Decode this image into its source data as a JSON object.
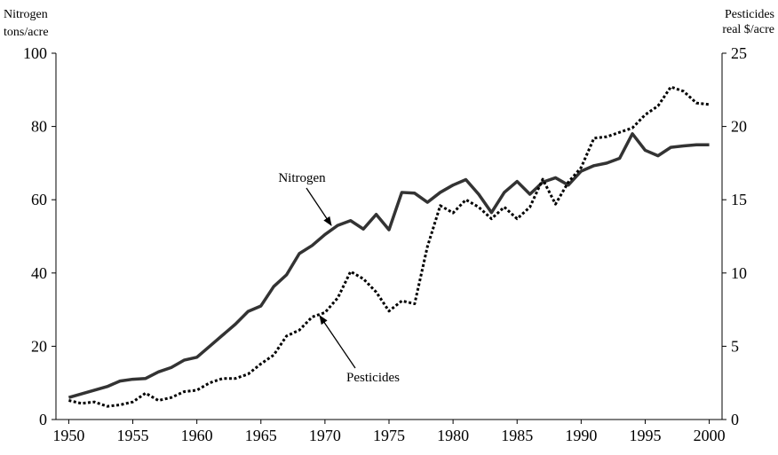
{
  "chart_data": {
    "type": "line",
    "y_label": [
      "Nitrogen",
      "tons/acre"
    ],
    "y2_label": [
      "Pesticides",
      "real $/acre"
    ],
    "x": [
      1950,
      1951,
      1952,
      1953,
      1954,
      1955,
      1956,
      1957,
      1958,
      1959,
      1960,
      1961,
      1962,
      1963,
      1964,
      1965,
      1966,
      1967,
      1968,
      1969,
      1970,
      1971,
      1972,
      1973,
      1974,
      1975,
      1976,
      1977,
      1978,
      1979,
      1980,
      1981,
      1982,
      1983,
      1984,
      1985,
      1986,
      1987,
      1988,
      1989,
      1990,
      1991,
      1992,
      1993,
      1994,
      1995,
      1996,
      1997,
      1998,
      1999,
      2000
    ],
    "xlim": [
      1949,
      2001
    ],
    "xticks": [
      1950,
      1955,
      1960,
      1965,
      1970,
      1975,
      1980,
      1985,
      1990,
      1995,
      2000
    ],
    "ylim": [
      0,
      100
    ],
    "yticks": [
      0,
      20,
      40,
      60,
      80,
      100
    ],
    "y2lim": [
      0,
      25
    ],
    "y2ticks": [
      0,
      5,
      10,
      15,
      20,
      25
    ],
    "grid": false,
    "series": [
      {
        "name": "Nitrogen",
        "color": "#333333",
        "dash": "solid",
        "values": [
          6,
          7,
          8,
          9,
          10.5,
          11,
          11.2,
          13,
          14.2,
          16.2,
          17,
          20,
          23,
          26,
          29.5,
          31,
          36.3,
          39.5,
          45.3,
          47.5,
          50.5,
          53,
          54.3,
          52,
          56,
          51.8,
          62,
          61.8,
          59.3,
          62,
          64,
          65.5,
          61.5,
          56.5,
          62,
          65,
          61.5,
          64.8,
          66,
          64,
          67.8,
          69.3,
          70,
          71.3,
          78,
          73.5,
          72,
          74.3,
          74.7,
          75,
          75
        ]
      },
      {
        "name": "Pesticides",
        "color": "#000000",
        "dash": "dotted",
        "axis": "y2",
        "values": [
          1.3,
          1.1,
          1.2,
          0.9,
          1.0,
          1.2,
          1.8,
          1.3,
          1.5,
          1.9,
          2.0,
          2.5,
          2.8,
          2.8,
          3.1,
          3.8,
          4.4,
          5.7,
          6.1,
          7.0,
          7.3,
          8.3,
          10.1,
          9.6,
          8.7,
          7.4,
          8.1,
          7.9,
          11.8,
          14.6,
          14.1,
          15.0,
          14.5,
          13.7,
          14.5,
          13.7,
          14.5,
          16.4,
          14.7,
          16.2,
          17.2,
          19.2,
          19.3,
          19.6,
          19.9,
          20.8,
          21.4,
          22.7,
          22.4,
          21.6,
          21.5
        ]
      }
    ]
  }
}
